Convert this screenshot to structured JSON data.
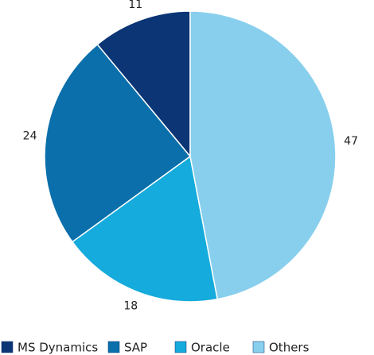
{
  "chart_data": {
    "type": "pie",
    "categories": [
      "MS Dynamics",
      "SAP",
      "Oracle",
      "Others"
    ],
    "values": [
      11,
      24,
      18,
      47
    ],
    "colors": [
      "#0b3575",
      "#0a6faa",
      "#15abdc",
      "#88cfee"
    ],
    "legend": "bottom"
  }
}
